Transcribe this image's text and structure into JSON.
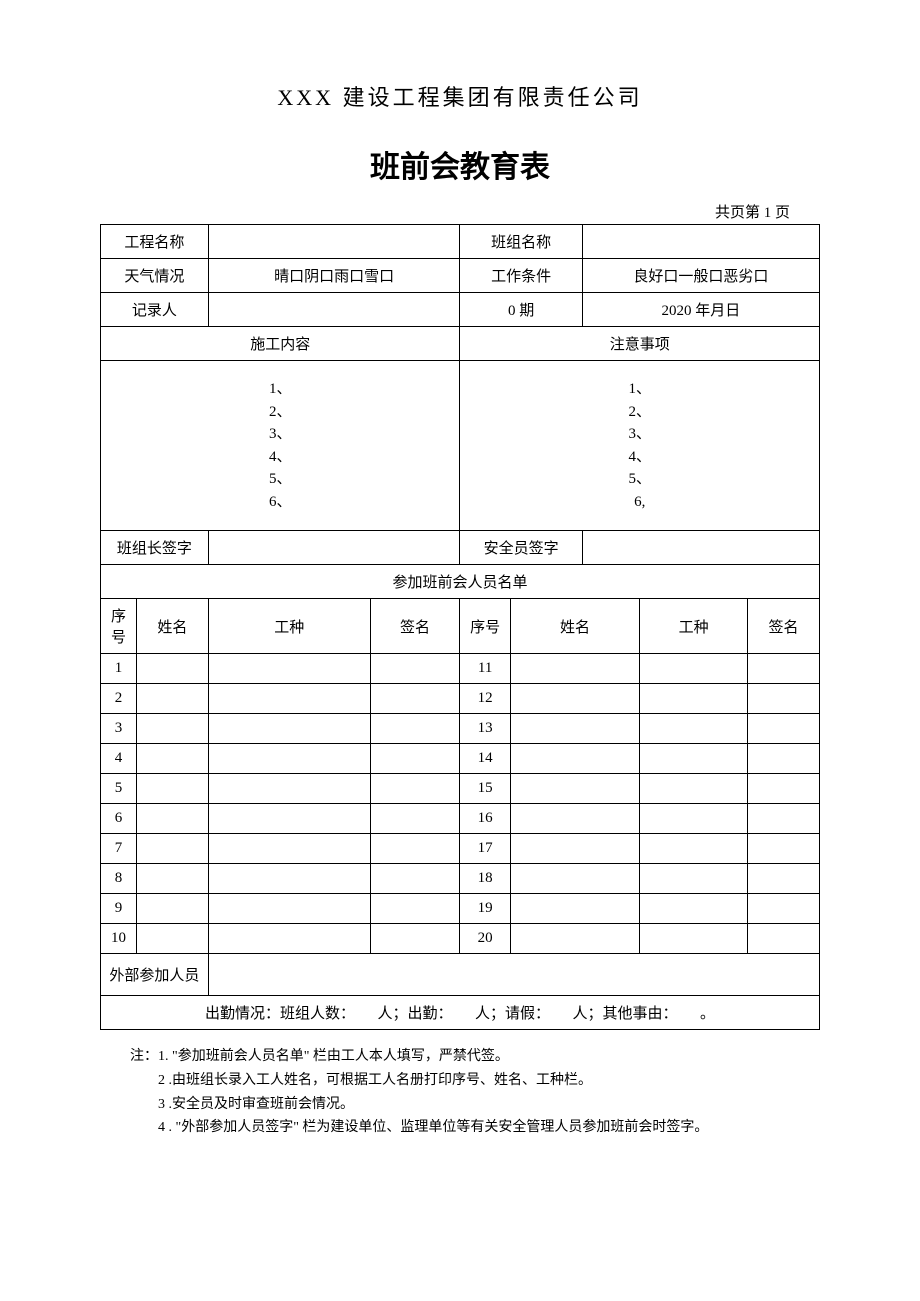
{
  "company_name": "XXX 建设工程集团有限责任公司",
  "form_title": "班前会教育表",
  "page_info": "共页第 1 页",
  "header": {
    "project_name_label": "工程名称",
    "team_name_label": "班组名称",
    "weather_label": "天气情况",
    "weather_options": "晴口阴口雨口雪口",
    "condition_label": "工作条件",
    "condition_options": "良好口一般口恶劣口",
    "recorder_label": "记录人",
    "date_label": "0 期",
    "date_value": "2020 年月日"
  },
  "content": {
    "construction_label": "施工内容",
    "precaution_label": "注意事项",
    "left_items": [
      "1、",
      "2、",
      "3、",
      "4、",
      "5、",
      "6、"
    ],
    "right_items": [
      "1、",
      "2、",
      "3、",
      "4、",
      "5、",
      "6,"
    ]
  },
  "signatures": {
    "leader_label": "班组长签字",
    "safety_label": "安全员签字"
  },
  "roster": {
    "title": "参加班前会人员名单",
    "columns": [
      "序号",
      "姓名",
      "工种",
      "签名",
      "序号",
      "姓名",
      "工种",
      "签名"
    ],
    "rows": [
      {
        "left_no": "1",
        "right_no": "11"
      },
      {
        "left_no": "2",
        "right_no": "12"
      },
      {
        "left_no": "3",
        "right_no": "13"
      },
      {
        "left_no": "4",
        "right_no": "14"
      },
      {
        "left_no": "5",
        "right_no": "15"
      },
      {
        "left_no": "6",
        "right_no": "16"
      },
      {
        "left_no": "7",
        "right_no": "17"
      },
      {
        "left_no": "8",
        "right_no": "18"
      },
      {
        "left_no": "9",
        "right_no": "19"
      },
      {
        "left_no": "10",
        "right_no": "20"
      }
    ],
    "external_label": "外部参加人员"
  },
  "attendance": {
    "text": "出勤情况：班组人数：　　人；出勤：　　人；请假：　　人；其他事由：　　。"
  },
  "notes": {
    "prefix": "注：",
    "items": [
      "1. \"参加班前会人员名单\" 栏由工人本人填写，严禁代签。",
      "2 .由班组长录入工人姓名，可根据工人名册打印序号、姓名、工种栏。",
      "3 .安全员及时审查班前会情况。",
      "4 . \"外部参加人员签字\" 栏为建设单位、监理单位等有关安全管理人员参加班前会时签字。"
    ]
  },
  "style": {
    "border_color": "#000000",
    "background_color": "#ffffff",
    "text_color": "#000000"
  }
}
